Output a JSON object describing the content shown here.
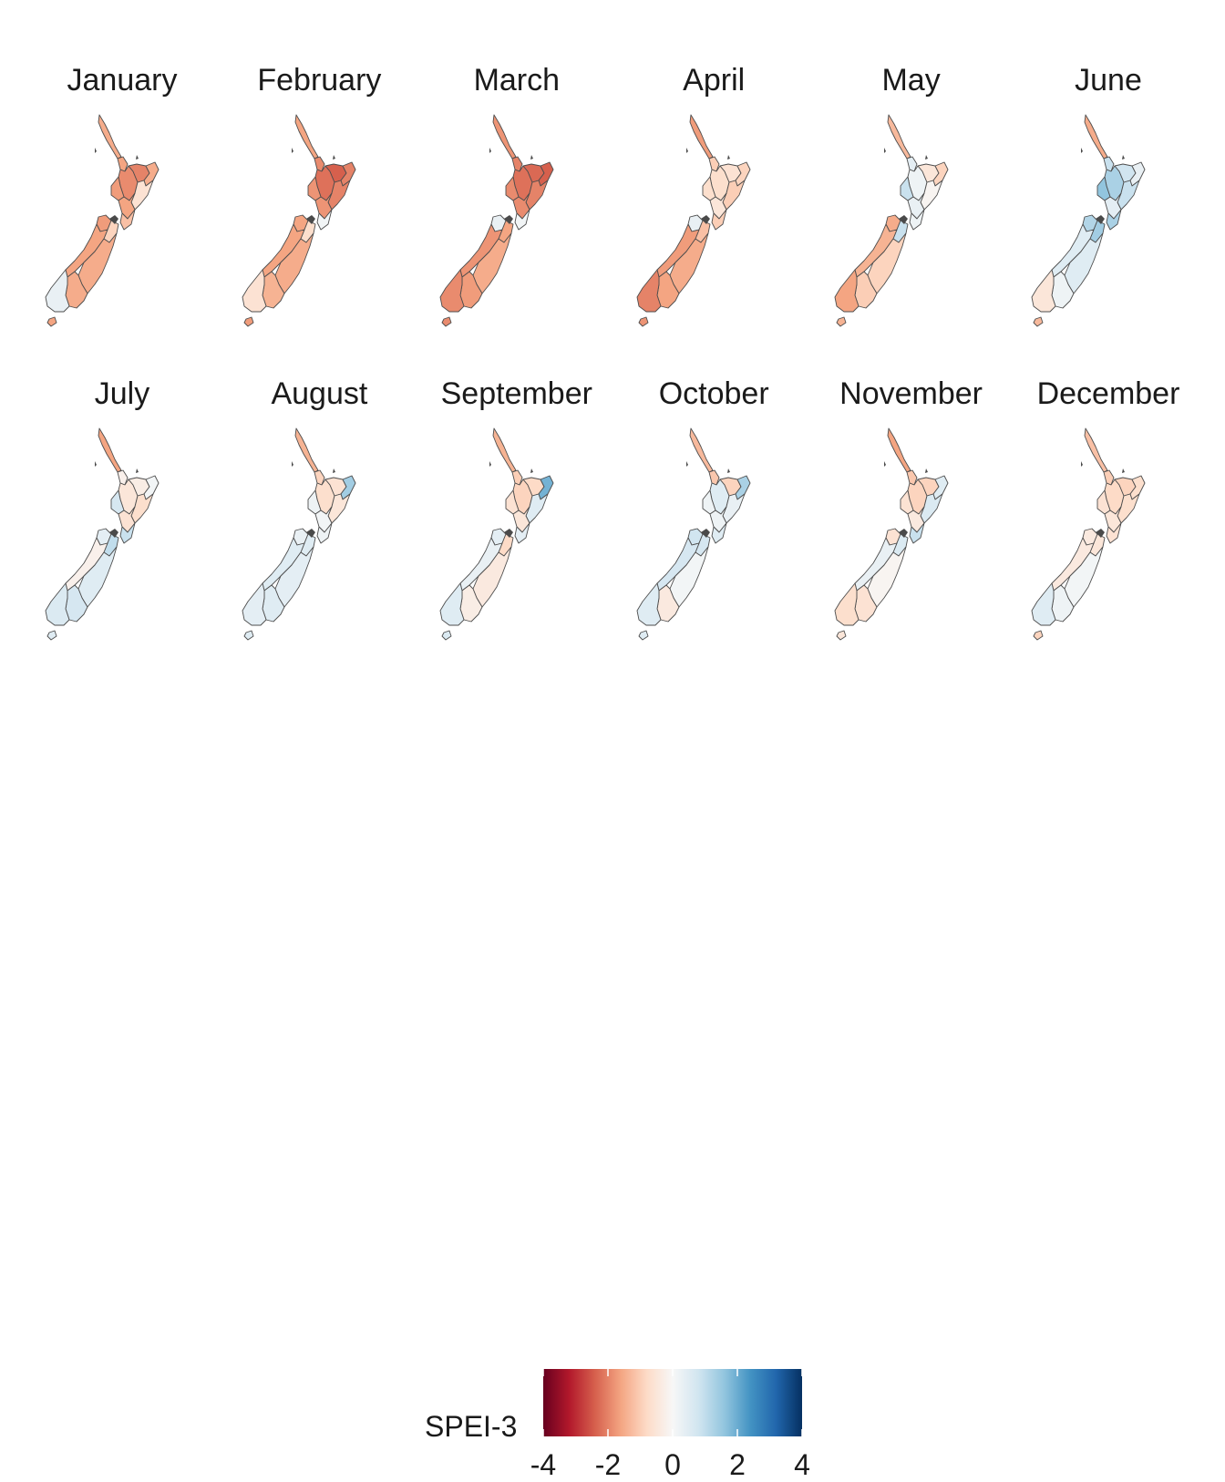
{
  "figure": {
    "months": [
      {
        "name": "January",
        "values": {
          "northland": -1.5,
          "auckland": -1.6,
          "waikato": -1.9,
          "bay_of_plenty": -2.0,
          "gisborne": -1.5,
          "hawkes_bay": -0.6,
          "taranaki": -1.7,
          "manawatu": -1.6,
          "wellington": -1.2,
          "tasman": -1.7,
          "marlborough": -0.9,
          "west_coast": -1.6,
          "canterbury": -1.5,
          "otago": -1.5,
          "southland": 0.3,
          "stewart_island": -1.6
        }
      },
      {
        "name": "February",
        "values": {
          "northland": -1.6,
          "auckland": -1.9,
          "waikato": -2.2,
          "bay_of_plenty": -2.4,
          "gisborne": -2.0,
          "hawkes_bay": -2.0,
          "taranaki": -1.8,
          "manawatu": -1.8,
          "wellington": 0.1,
          "tasman": -1.6,
          "marlborough": -0.7,
          "west_coast": -1.6,
          "canterbury": -1.5,
          "otago": -1.4,
          "southland": -0.6,
          "stewart_island": -1.7
        }
      },
      {
        "name": "March",
        "values": {
          "northland": -1.8,
          "auckland": -2.0,
          "waikato": -2.2,
          "bay_of_plenty": -2.3,
          "gisborne": -2.4,
          "hawkes_bay": -2.0,
          "taranaki": -1.9,
          "manawatu": -1.9,
          "wellington": 0.1,
          "tasman": 0.3,
          "marlborough": -1.6,
          "west_coast": -1.8,
          "canterbury": -1.5,
          "otago": -1.7,
          "southland": -1.9,
          "stewart_island": -1.9
        }
      },
      {
        "name": "April",
        "values": {
          "northland": -1.7,
          "auckland": -1.0,
          "waikato": -0.7,
          "bay_of_plenty": -0.6,
          "gisborne": -0.9,
          "hawkes_bay": -1.0,
          "taranaki": -0.7,
          "manawatu": -0.5,
          "wellington": -1.0,
          "tasman": 0.3,
          "marlborough": -1.2,
          "west_coast": -1.7,
          "canterbury": -1.5,
          "otago": -1.6,
          "southland": -2.0,
          "stewart_island": -1.8
        }
      },
      {
        "name": "May",
        "values": {
          "northland": -1.3,
          "auckland": 0.4,
          "waikato": 0.2,
          "bay_of_plenty": -0.5,
          "gisborne": -0.9,
          "hawkes_bay": -0.1,
          "taranaki": 0.9,
          "manawatu": 0.3,
          "wellington": 0.2,
          "tasman": -1.5,
          "marlborough": 0.9,
          "west_coast": -1.4,
          "canterbury": -0.9,
          "otago": -1.0,
          "southland": -1.6,
          "stewart_island": -1.4
        }
      },
      {
        "name": "June",
        "values": {
          "northland": -1.5,
          "auckland": 0.9,
          "waikato": 1.3,
          "bay_of_plenty": 0.8,
          "gisborne": 0.3,
          "hawkes_bay": 0.9,
          "taranaki": 1.6,
          "manawatu": 0.4,
          "wellington": 1.3,
          "tasman": 1.2,
          "marlborough": 1.4,
          "west_coast": 0.5,
          "canterbury": 0.5,
          "otago": 0.2,
          "southland": -0.5,
          "stewart_island": -1.3
        }
      },
      {
        "name": "July",
        "values": {
          "northland": -1.6,
          "auckland": -0.2,
          "waikato": -0.5,
          "bay_of_plenty": -0.3,
          "gisborne": 0.1,
          "hawkes_bay": -0.7,
          "taranaki": 0.7,
          "manawatu": -0.6,
          "wellington": 0.9,
          "tasman": 0.4,
          "marlborough": 1.0,
          "west_coast": -0.2,
          "canterbury": 0.5,
          "otago": 0.7,
          "southland": 0.6,
          "stewart_island": 0.5
        }
      },
      {
        "name": "August",
        "values": {
          "northland": -1.4,
          "auckland": -0.9,
          "waikato": -0.7,
          "bay_of_plenty": -0.6,
          "gisborne": 1.4,
          "hawkes_bay": -0.5,
          "taranaki": 0.2,
          "manawatu": 0.1,
          "wellington": 0.2,
          "tasman": 0.3,
          "marlborough": 0.5,
          "west_coast": 0.5,
          "canterbury": 0.4,
          "otago": 0.5,
          "southland": 0.4,
          "stewart_island": 0.5
        }
      },
      {
        "name": "September",
        "values": {
          "northland": -1.4,
          "auckland": -1.0,
          "waikato": -0.9,
          "bay_of_plenty": -0.8,
          "gisborne": 1.9,
          "hawkes_bay": 0.5,
          "taranaki": -0.6,
          "manawatu": -0.5,
          "wellington": 0.4,
          "tasman": 0.4,
          "marlborough": -0.8,
          "west_coast": 0.3,
          "canterbury": -0.4,
          "otago": -0.3,
          "southland": 0.5,
          "stewart_island": 0.6
        }
      },
      {
        "name": "October",
        "values": {
          "northland": -1.3,
          "auckland": -1.1,
          "waikato": 0.5,
          "bay_of_plenty": -0.9,
          "gisborne": 1.3,
          "hawkes_bay": 0.3,
          "taranaki": 0.2,
          "manawatu": 0.2,
          "wellington": 0.5,
          "tasman": 0.8,
          "marlborough": 0.7,
          "west_coast": 0.7,
          "canterbury": 0.1,
          "otago": -0.4,
          "southland": 0.5,
          "stewart_island": 0.5
        }
      },
      {
        "name": "November",
        "values": {
          "northland": -1.6,
          "auckland": -1.1,
          "waikato": -0.9,
          "bay_of_plenty": -0.9,
          "gisborne": 0.5,
          "hawkes_bay": 0.6,
          "taranaki": -0.6,
          "manawatu": -0.4,
          "wellington": 0.9,
          "tasman": -0.6,
          "marlborough": 0.6,
          "west_coast": 0.3,
          "canterbury": -0.1,
          "otago": -0.6,
          "southland": -0.7,
          "stewart_island": -0.5
        }
      },
      {
        "name": "December",
        "values": {
          "northland": -1.2,
          "auckland": -1.0,
          "waikato": -0.8,
          "bay_of_plenty": -0.9,
          "gisborne": -0.7,
          "hawkes_bay": -0.7,
          "taranaki": -0.6,
          "manawatu": -0.5,
          "wellington": -0.6,
          "tasman": -0.4,
          "marlborough": -0.5,
          "west_coast": -0.4,
          "canterbury": 0.1,
          "otago": 0.2,
          "southland": 0.5,
          "stewart_island": -0.9
        }
      }
    ]
  },
  "legend": {
    "title": "SPEI-3",
    "range": [
      -4,
      4
    ],
    "ticks": [
      "-4",
      "-2",
      "0",
      "2",
      "4"
    ],
    "palette": [
      "#67001f",
      "#b2182b",
      "#d6604d",
      "#f4a582",
      "#fddbc7",
      "#f7f7f7",
      "#d1e5f0",
      "#92c5de",
      "#4393c3",
      "#2166ac",
      "#053061"
    ]
  },
  "colors": {
    "border": "#4d4d4d",
    "water": "#4a4a4a"
  }
}
